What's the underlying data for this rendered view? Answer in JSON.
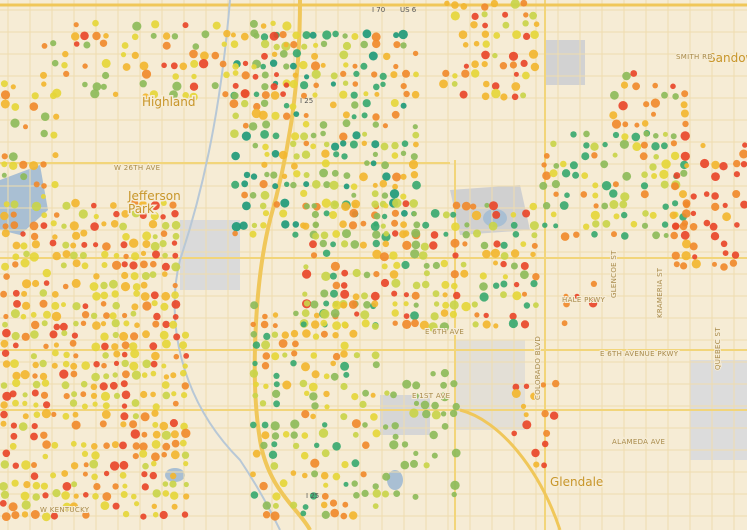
{
  "map": {
    "labels": {
      "highland": "Highland",
      "jefferson_park": "Jefferson\nPark",
      "glendale": "Glendale",
      "sandown": "Sandown",
      "w_26th": "W 26TH AVE",
      "e_6th_pkwy": "E 6TH AVENUE PKWY",
      "e_6th": "E 6TH AVE",
      "e_1st": "E 1ST AVE",
      "alameda": "ALAMEDA AVE",
      "hale": "HALE PKWY",
      "smith": "SMITH RD",
      "quebec": "QUEBEC ST",
      "glencoe": "GLENCOE ST",
      "krameria": "KRAMERIA ST",
      "colorado": "COLORADO BLVD",
      "w_kentucky": "W KENTUCKY",
      "i25_top": "I 25",
      "i25_bottom": "I 25",
      "i70": "I 70",
      "us6": "US 6"
    }
  }
}
